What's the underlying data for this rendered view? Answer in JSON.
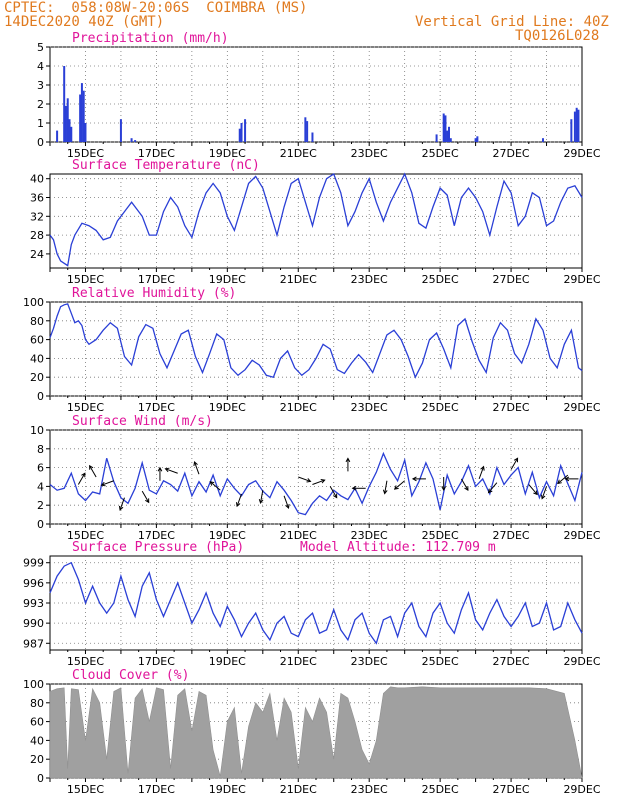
{
  "header": {
    "line1": "CPTEC:  058:08W-20:06S  COIMBRA (MS)",
    "line2": "14DEC2020 40Z (GMT)",
    "grid_note": "Vertical Grid Line: 40Z",
    "code": "TQ0126L028"
  },
  "colors": {
    "header": "#e07a1f",
    "title": "#e0149a",
    "series": "#2a3fd6",
    "cloud": "#a0a0a0"
  },
  "x_axis": {
    "start_day": 14,
    "end_day": 29,
    "tick_days": [
      15,
      17,
      19,
      21,
      23,
      25,
      27,
      29
    ],
    "tick_labels": [
      "15DEC",
      "17DEC",
      "19DEC",
      "21DEC",
      "23DEC",
      "25DEC",
      "27DEC",
      "29DEC"
    ]
  },
  "chart_data": [
    {
      "id": "precip",
      "type": "bar",
      "title": "Precipitation (mm/h)",
      "ylim": [
        0,
        5
      ],
      "yticks": [
        0,
        1,
        2,
        3,
        4,
        5
      ],
      "x": [
        14.2,
        14.4,
        14.45,
        14.5,
        14.55,
        14.6,
        14.85,
        14.9,
        14.95,
        15.0,
        16.0,
        16.3,
        16.4,
        19.35,
        19.4,
        19.5,
        21.2,
        21.25,
        21.4,
        24.9,
        25.1,
        25.15,
        25.2,
        25.25,
        25.3,
        26.0,
        26.05,
        27.9,
        28.7,
        28.8,
        28.85,
        28.9
      ],
      "values": [
        0.6,
        4.0,
        1.9,
        2.3,
        1.2,
        0.8,
        2.5,
        3.1,
        2.7,
        1.0,
        1.2,
        0.2,
        0.1,
        0.7,
        1.0,
        1.2,
        1.3,
        1.1,
        0.5,
        0.4,
        1.5,
        1.4,
        0.6,
        0.8,
        0.2,
        0.2,
        0.3,
        0.2,
        1.2,
        1.6,
        1.8,
        1.7
      ]
    },
    {
      "id": "temp",
      "type": "line",
      "title": "Surface Temperature (nC)",
      "ylim": [
        21,
        41
      ],
      "yticks": [
        24,
        28,
        32,
        36,
        40
      ],
      "x": [
        14.0,
        14.1,
        14.2,
        14.3,
        14.4,
        14.5,
        14.6,
        14.7,
        14.9,
        15.1,
        15.3,
        15.5,
        15.7,
        15.9,
        16.1,
        16.3,
        16.5,
        16.6,
        16.8,
        17.0,
        17.2,
        17.4,
        17.6,
        17.8,
        18.0,
        18.2,
        18.4,
        18.6,
        18.8,
        19.0,
        19.2,
        19.4,
        19.6,
        19.8,
        20.0,
        20.2,
        20.4,
        20.6,
        20.8,
        21.0,
        21.2,
        21.4,
        21.6,
        21.8,
        22.0,
        22.2,
        22.4,
        22.6,
        22.8,
        23.0,
        23.2,
        23.4,
        23.6,
        23.8,
        24.0,
        24.2,
        24.4,
        24.6,
        24.8,
        25.0,
        25.2,
        25.4,
        25.6,
        25.8,
        26.0,
        26.2,
        26.4,
        26.6,
        26.8,
        27.0,
        27.2,
        27.4,
        27.6,
        27.8,
        28.0,
        28.2,
        28.4,
        28.6,
        28.8,
        29.0
      ],
      "values": [
        28,
        27,
        24,
        22.5,
        22,
        21.5,
        26,
        28,
        30.5,
        30,
        29,
        27,
        27.5,
        31,
        33,
        35,
        33,
        32,
        28,
        28,
        33,
        36,
        34,
        30,
        27.5,
        33,
        37,
        39,
        37,
        32,
        29,
        34,
        39,
        40.5,
        38,
        33,
        28,
        34,
        39,
        40,
        35,
        30,
        36,
        40,
        41,
        37,
        30,
        33,
        37,
        40,
        35,
        31,
        35,
        38,
        41,
        37,
        30.5,
        29.5,
        34,
        38,
        36.5,
        30,
        36,
        38,
        36,
        33,
        28,
        34,
        39.5,
        37,
        30,
        32,
        37,
        36,
        30,
        31,
        35,
        38,
        38.5,
        36
      ]
    },
    {
      "id": "rh",
      "type": "line",
      "title": "Relative Humidity (%)",
      "ylim": [
        0,
        100
      ],
      "yticks": [
        0,
        20,
        40,
        60,
        80,
        100
      ],
      "x": [
        14.0,
        14.1,
        14.2,
        14.3,
        14.4,
        14.5,
        14.6,
        14.7,
        14.8,
        14.9,
        15.0,
        15.1,
        15.3,
        15.5,
        15.7,
        15.9,
        16.1,
        16.3,
        16.5,
        16.7,
        16.9,
        17.1,
        17.3,
        17.5,
        17.7,
        17.9,
        18.1,
        18.3,
        18.5,
        18.7,
        18.9,
        19.1,
        19.3,
        19.5,
        19.7,
        19.9,
        20.1,
        20.3,
        20.5,
        20.7,
        20.9,
        21.1,
        21.3,
        21.5,
        21.7,
        21.9,
        22.1,
        22.3,
        22.5,
        22.7,
        22.9,
        23.1,
        23.3,
        23.5,
        23.7,
        23.9,
        24.1,
        24.3,
        24.5,
        24.7,
        24.9,
        25.1,
        25.3,
        25.5,
        25.7,
        25.9,
        26.1,
        26.3,
        26.5,
        26.7,
        26.9,
        27.1,
        27.3,
        27.5,
        27.7,
        27.9,
        28.1,
        28.3,
        28.5,
        28.7,
        28.9,
        29.0
      ],
      "values": [
        62,
        72,
        85,
        95,
        97,
        98,
        88,
        78,
        80,
        75,
        60,
        55,
        60,
        70,
        78,
        72,
        42,
        33,
        63,
        76,
        72,
        45,
        30,
        48,
        66,
        70,
        42,
        25,
        45,
        66,
        60,
        30,
        22,
        28,
        38,
        33,
        22,
        20,
        40,
        48,
        30,
        22,
        28,
        40,
        55,
        50,
        28,
        24,
        35,
        44,
        36,
        25,
        45,
        65,
        70,
        60,
        42,
        20,
        35,
        60,
        67,
        50,
        30,
        75,
        82,
        58,
        38,
        25,
        62,
        78,
        70,
        45,
        35,
        55,
        82,
        70,
        40,
        30,
        55,
        70,
        30,
        27
      ]
    },
    {
      "id": "wind",
      "type": "line",
      "title": "Surface Wind (m/s)",
      "ylim": [
        0,
        10
      ],
      "yticks": [
        0,
        2,
        4,
        6,
        8,
        10
      ],
      "x": [
        14.0,
        14.2,
        14.4,
        14.6,
        14.8,
        15.0,
        15.2,
        15.4,
        15.6,
        15.8,
        16.0,
        16.2,
        16.4,
        16.6,
        16.8,
        17.0,
        17.2,
        17.4,
        17.6,
        17.8,
        18.0,
        18.2,
        18.4,
        18.6,
        18.8,
        19.0,
        19.2,
        19.4,
        19.6,
        19.8,
        20.0,
        20.2,
        20.4,
        20.6,
        20.8,
        21.0,
        21.2,
        21.4,
        21.6,
        21.8,
        22.0,
        22.2,
        22.4,
        22.6,
        22.8,
        23.0,
        23.2,
        23.4,
        23.6,
        23.8,
        24.0,
        24.2,
        24.4,
        24.6,
        24.8,
        25.0,
        25.2,
        25.4,
        25.6,
        25.8,
        26.0,
        26.2,
        26.4,
        26.6,
        26.8,
        27.0,
        27.2,
        27.4,
        27.6,
        27.8,
        28.0,
        28.2,
        28.4,
        28.6,
        28.8,
        29.0
      ],
      "values": [
        4.2,
        3.6,
        3.8,
        5.4,
        3.2,
        2.5,
        3.4,
        3.2,
        7.0,
        4.5,
        2.8,
        2.2,
        3.8,
        6.5,
        3.6,
        3.2,
        4.6,
        4.2,
        3.5,
        5.4,
        3.0,
        4.5,
        3.4,
        5.2,
        3.0,
        4.8,
        3.8,
        3.0,
        4.2,
        4.6,
        3.5,
        2.8,
        4.5,
        3.6,
        2.5,
        1.2,
        1.0,
        2.2,
        3.0,
        2.5,
        3.6,
        3.0,
        2.6,
        3.8,
        2.2,
        4.0,
        5.5,
        7.5,
        5.8,
        4.6,
        6.8,
        3.0,
        4.5,
        6.5,
        4.8,
        1.5,
        5.2,
        3.2,
        4.5,
        6.2,
        4.0,
        4.8,
        3.2,
        6.0,
        4.2,
        5.2,
        6.0,
        3.2,
        5.5,
        2.8,
        4.5,
        3.0,
        6.2,
        4.3,
        2.5,
        5.5
      ]
    },
    {
      "id": "pressure",
      "type": "line",
      "title": "Surface Pressure (hPa)",
      "annotation": "Model Altitude: 112.709 m",
      "ylim": [
        986,
        1000
      ],
      "yticks": [
        987,
        990,
        993,
        996,
        999
      ],
      "x": [
        14.0,
        14.2,
        14.4,
        14.6,
        14.8,
        15.0,
        15.2,
        15.4,
        15.6,
        15.8,
        16.0,
        16.2,
        16.4,
        16.6,
        16.8,
        17.0,
        17.2,
        17.4,
        17.6,
        17.8,
        18.0,
        18.2,
        18.4,
        18.6,
        18.8,
        19.0,
        19.2,
        19.4,
        19.6,
        19.8,
        20.0,
        20.2,
        20.4,
        20.6,
        20.8,
        21.0,
        21.2,
        21.4,
        21.6,
        21.8,
        22.0,
        22.2,
        22.4,
        22.6,
        22.8,
        23.0,
        23.2,
        23.4,
        23.6,
        23.8,
        24.0,
        24.2,
        24.4,
        24.6,
        24.8,
        25.0,
        25.2,
        25.4,
        25.6,
        25.8,
        26.0,
        26.2,
        26.4,
        26.6,
        26.8,
        27.0,
        27.2,
        27.4,
        27.6,
        27.8,
        28.0,
        28.2,
        28.4,
        28.6,
        28.8,
        29.0
      ],
      "values": [
        994.5,
        997,
        998.5,
        999,
        996.5,
        993,
        995.5,
        993,
        991.5,
        993,
        997,
        993.5,
        991,
        995.5,
        997.5,
        993.5,
        991,
        993.5,
        996,
        993,
        990,
        992,
        994.5,
        991.5,
        989.5,
        992.5,
        990.5,
        988,
        990,
        991.5,
        989,
        987.5,
        990,
        991,
        988.5,
        988,
        990.5,
        991.5,
        988.5,
        989,
        992,
        989,
        987.5,
        990.5,
        991.5,
        988.5,
        987,
        990.5,
        991,
        988,
        991.5,
        993,
        989.5,
        988,
        991.5,
        993,
        990,
        988.5,
        992,
        994.5,
        990.5,
        989,
        991.5,
        993.5,
        991,
        989.5,
        991,
        993,
        989.5,
        990,
        993,
        989,
        989.5,
        993,
        990.5,
        988.5
      ]
    },
    {
      "id": "cloud",
      "type": "area",
      "title": "Cloud Cover (%)",
      "ylim": [
        0,
        100
      ],
      "yticks": [
        0,
        20,
        40,
        60,
        80,
        100
      ],
      "x": [
        14.0,
        14.2,
        14.4,
        14.5,
        14.6,
        14.8,
        15.0,
        15.2,
        15.4,
        15.6,
        15.8,
        16.0,
        16.2,
        16.4,
        16.6,
        16.8,
        17.0,
        17.2,
        17.4,
        17.6,
        17.8,
        18.0,
        18.2,
        18.4,
        18.6,
        18.8,
        19.0,
        19.2,
        19.4,
        19.6,
        19.8,
        20.0,
        20.2,
        20.4,
        20.6,
        20.8,
        21.0,
        21.2,
        21.4,
        21.6,
        21.8,
        22.0,
        22.2,
        22.4,
        22.6,
        22.8,
        23.0,
        23.2,
        23.4,
        23.6,
        23.8,
        24.0,
        24.5,
        25.0,
        25.5,
        26.0,
        26.5,
        27.0,
        27.5,
        28.0,
        28.5,
        28.8,
        29.0
      ],
      "values": [
        92,
        95,
        96,
        10,
        95,
        94,
        40,
        95,
        80,
        20,
        92,
        96,
        5,
        85,
        95,
        60,
        96,
        94,
        10,
        88,
        95,
        50,
        92,
        88,
        30,
        2,
        60,
        75,
        5,
        55,
        80,
        70,
        90,
        40,
        85,
        70,
        10,
        75,
        60,
        85,
        70,
        20,
        90,
        85,
        60,
        30,
        15,
        40,
        90,
        97,
        96,
        96,
        97,
        96,
        96,
        96,
        96,
        96,
        96,
        95,
        90,
        40,
        0
      ]
    }
  ],
  "wind_vectors": [
    {
      "x": 14.8,
      "y": 4.2,
      "dir": -60
    },
    {
      "x": 15.3,
      "y": 5.0,
      "dir": -120
    },
    {
      "x": 15.8,
      "y": 4.6,
      "dir": 160
    },
    {
      "x": 16.1,
      "y": 2.8,
      "dir": 110
    },
    {
      "x": 16.6,
      "y": 3.5,
      "dir": 60
    },
    {
      "x": 17.1,
      "y": 4.6,
      "dir": -90
    },
    {
      "x": 17.6,
      "y": 5.4,
      "dir": -160
    },
    {
      "x": 18.2,
      "y": 5.3,
      "dir": -110
    },
    {
      "x": 18.8,
      "y": 3.6,
      "dir": -140
    },
    {
      "x": 19.4,
      "y": 3.2,
      "dir": 110
    },
    {
      "x": 20.0,
      "y": 3.6,
      "dir": 100
    },
    {
      "x": 20.6,
      "y": 3.0,
      "dir": 70
    },
    {
      "x": 21.0,
      "y": 5.0,
      "dir": 20
    },
    {
      "x": 21.4,
      "y": 4.2,
      "dir": -20
    },
    {
      "x": 21.9,
      "y": 4.0,
      "dir": 60
    },
    {
      "x": 22.4,
      "y": 5.6,
      "dir": -90
    },
    {
      "x": 22.9,
      "y": 3.8,
      "dir": 180
    },
    {
      "x": 23.5,
      "y": 4.6,
      "dir": 100
    },
    {
      "x": 24.0,
      "y": 4.6,
      "dir": 140
    },
    {
      "x": 24.6,
      "y": 4.8,
      "dir": 180
    },
    {
      "x": 25.1,
      "y": 5.0,
      "dir": 90
    },
    {
      "x": 25.6,
      "y": 4.8,
      "dir": 60
    },
    {
      "x": 26.1,
      "y": 4.8,
      "dir": -70
    },
    {
      "x": 26.6,
      "y": 4.4,
      "dir": 130
    },
    {
      "x": 27.0,
      "y": 5.8,
      "dir": -60
    },
    {
      "x": 27.5,
      "y": 4.2,
      "dir": 50
    },
    {
      "x": 28.0,
      "y": 4.0,
      "dir": 110
    },
    {
      "x": 28.6,
      "y": 5.2,
      "dir": 140
    },
    {
      "x": 28.9,
      "y": 4.8,
      "dir": 180
    }
  ]
}
